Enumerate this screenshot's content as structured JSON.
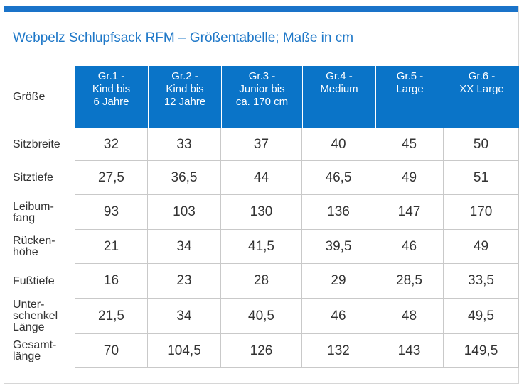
{
  "colors": {
    "accent": "#1a73c9",
    "header_bg": "#0a74c8",
    "title": "#1f78c8"
  },
  "title": "Webpelz Schlupfsack RFM – Größentabelle; Maße in cm",
  "table": {
    "corner_label": "Größe",
    "columns": [
      "Gr.1 -\nKind bis\n6 Jahre",
      "Gr.2 -\nKind bis\n12 Jahre",
      "Gr.3 -\nJunior bis\nca. 170 cm",
      "Gr.4 -\nMedium",
      "Gr.5 -\nLarge",
      "Gr.6 -\nXX Large"
    ],
    "rows": [
      {
        "label": "Sitzbreite",
        "values": [
          "32",
          "33",
          "37",
          "40",
          "45",
          "50"
        ]
      },
      {
        "label": "Sitztiefe",
        "values": [
          "27,5",
          "36,5",
          "44",
          "46,5",
          "49",
          "51"
        ]
      },
      {
        "label": "Leibum-\nfang",
        "values": [
          "93",
          "103",
          "130",
          "136",
          "147",
          "170"
        ]
      },
      {
        "label": "Rücken-\nhöhe",
        "values": [
          "21",
          "34",
          "41,5",
          "39,5",
          "46",
          "49"
        ]
      },
      {
        "label": "Fußtiefe",
        "values": [
          "16",
          "23",
          "28",
          "29",
          "28,5",
          "33,5"
        ]
      },
      {
        "label": "Unter-\nschenkel\nLänge",
        "values": [
          "21,5",
          "34",
          "40,5",
          "46",
          "48",
          "49,5"
        ]
      },
      {
        "label": "Gesamt-\nlänge",
        "values": [
          "70",
          "104,5",
          "126",
          "132",
          "143",
          "149,5"
        ]
      }
    ]
  }
}
